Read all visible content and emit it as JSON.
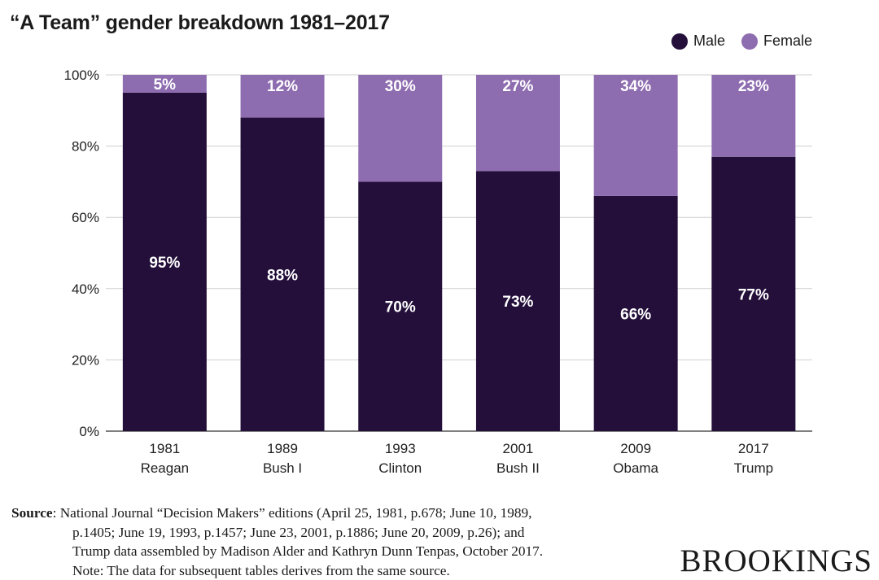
{
  "header": {
    "title": "“A Team” gender breakdown 1981–2017"
  },
  "legend": [
    {
      "label": "Male",
      "color": "#230f3a"
    },
    {
      "label": "Female",
      "color": "#8e6cb0"
    }
  ],
  "chart_data": {
    "type": "bar",
    "stacked": true,
    "title": "“A Team” gender breakdown 1981–2017",
    "categories": [
      {
        "year": "1981",
        "name": "Reagan"
      },
      {
        "year": "1989",
        "name": "Bush I"
      },
      {
        "year": "1993",
        "name": "Clinton"
      },
      {
        "year": "2001",
        "name": "Bush II"
      },
      {
        "year": "2009",
        "name": "Obama"
      },
      {
        "year": "2017",
        "name": "Trump"
      }
    ],
    "series": [
      {
        "name": "Male",
        "color": "#230f3a",
        "label_color": "#ffffff",
        "values": [
          95,
          88,
          70,
          73,
          66,
          77
        ]
      },
      {
        "name": "Female",
        "color": "#8e6cb0",
        "label_color": "#ffffff",
        "values": [
          5,
          12,
          30,
          27,
          34,
          23
        ]
      }
    ],
    "ylim": [
      0,
      100
    ],
    "yticks": [
      0,
      20,
      40,
      60,
      80,
      100
    ],
    "ytick_labels": [
      "0%",
      "20%",
      "40%",
      "60%",
      "80%",
      "100%"
    ],
    "grid": true,
    "legend_position": "top-right"
  },
  "source": {
    "label": "Source",
    "sep": ": ",
    "lines": [
      "National Journal “Decision Makers” editions (April 25, 1981, p.678; June 10, 1989,",
      "p.1405; June 19, 1993, p.1457; June 23, 2001, p.1886; June 20, 2009, p.26); and",
      "Trump data assembled by Madison Alder and Kathryn Dunn Tenpas, October 2017.",
      "Note: The data for subsequent tables derives from the same source."
    ]
  },
  "logo": "BROOKINGS"
}
